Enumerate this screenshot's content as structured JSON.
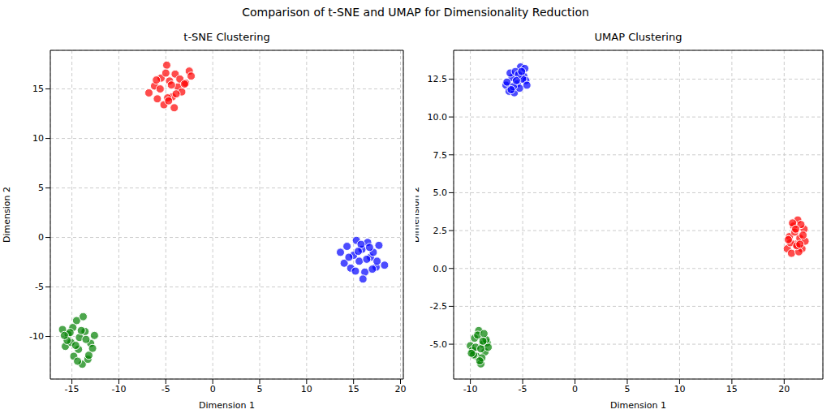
{
  "title": "Comparison of t-SNE and UMAP for Dimensionality Reduction",
  "chart_data": [
    {
      "type": "scatter",
      "title": "t-SNE Clustering",
      "x_label": "Dimension 1",
      "y_label": "Dimension 2",
      "xlim": [
        -17.3,
        20.3
      ],
      "ylim": [
        -14.3,
        18.9
      ],
      "xticks": [
        -15,
        -10,
        -5,
        0,
        5,
        10,
        15,
        20
      ],
      "yticks": [
        -10,
        -5,
        0,
        5,
        10,
        15
      ],
      "grid": true,
      "marker": "circle",
      "series": [
        {
          "color": "#ff0000",
          "x": [
            -6.8,
            -6.2,
            -5.9,
            -5.5,
            -5.2,
            -4.9,
            -4.6,
            -4.3,
            -4.0,
            -3.7,
            -3.3,
            -2.9,
            -2.5,
            -2.3,
            -5.6,
            -4.8,
            -4.1,
            -3.5,
            -6.0,
            -5.0,
            -4.4,
            -3.9,
            -3.0,
            -4.7
          ],
          "y": [
            14.6,
            15.3,
            14.0,
            16.1,
            13.4,
            17.4,
            15.8,
            14.2,
            16.5,
            15.2,
            14.7,
            15.6,
            16.8,
            16.3,
            15.0,
            14.1,
            13.1,
            16.0,
            15.9,
            16.6,
            15.4,
            14.5,
            15.5,
            13.8
          ]
        },
        {
          "color": "#0000ff",
          "x": [
            13.6,
            14.0,
            14.3,
            14.7,
            15.0,
            15.3,
            15.6,
            15.9,
            16.2,
            16.5,
            16.8,
            17.1,
            17.4,
            17.7,
            18.3,
            14.5,
            15.2,
            15.8,
            16.4,
            17.0,
            16.0,
            16.7,
            15.5,
            17.5
          ],
          "y": [
            -1.5,
            -2.6,
            -0.9,
            -3.1,
            -1.8,
            -0.3,
            -2.4,
            -1.2,
            -3.5,
            -0.5,
            -2.0,
            -1.5,
            -3.0,
            -0.8,
            -2.8,
            -2.0,
            -3.4,
            -0.7,
            -2.2,
            -3.2,
            -4.2,
            -1.0,
            -1.4,
            -2.4
          ]
        },
        {
          "color": "#008000",
          "x": [
            -16.0,
            -15.7,
            -15.4,
            -15.1,
            -14.8,
            -14.5,
            -14.2,
            -13.9,
            -13.6,
            -13.3,
            -13.0,
            -12.6,
            -15.5,
            -14.9,
            -14.3,
            -13.8,
            -13.2,
            -15.2,
            -14.6,
            -14.0,
            -13.5,
            -12.8,
            -14.4,
            -15.8
          ],
          "y": [
            -9.3,
            -11.0,
            -9.8,
            -10.6,
            -12.0,
            -8.4,
            -10.1,
            -12.8,
            -9.5,
            -12.3,
            -10.7,
            -9.9,
            -10.4,
            -9.1,
            -11.3,
            -8.0,
            -11.9,
            -9.6,
            -10.9,
            -9.4,
            -10.3,
            -11.2,
            -12.5,
            -9.9
          ]
        }
      ]
    },
    {
      "type": "scatter",
      "title": "UMAP Clustering",
      "x_label": "Dimension 1",
      "y_label": "Dimension 2",
      "xlim": [
        -11.6,
        23.7
      ],
      "ylim": [
        -7.3,
        14.4
      ],
      "xticks": [
        -10,
        -5,
        0,
        5,
        10,
        15,
        20
      ],
      "yticks": [
        {
          "value": -5,
          "label": "-5.0"
        },
        -2.5,
        {
          "value": 0,
          "label": "0.0"
        },
        2.5,
        {
          "value": 5,
          "label": "5.0"
        },
        7.5,
        {
          "value": 10,
          "label": "10.0"
        },
        12.5
      ],
      "grid": true,
      "marker": "circle",
      "series": [
        {
          "color": "#0000ff",
          "x": [
            -6.6,
            -6.3,
            -6.0,
            -5.8,
            -5.5,
            -5.2,
            -4.9,
            -4.7,
            -6.2,
            -5.7,
            -5.3,
            -5.0,
            -6.5,
            -5.9,
            -5.4,
            -4.8,
            -6.1,
            -5.6,
            -5.1,
            -4.6
          ],
          "y": [
            12.1,
            11.7,
            12.6,
            11.6,
            12.2,
            13.3,
            12.7,
            12.4,
            12.9,
            13.0,
            11.9,
            12.5,
            12.3,
            12.0,
            12.8,
            13.2,
            11.8,
            12.4,
            13.0,
            12.1
          ]
        },
        {
          "color": "#ff0000",
          "x": [
            20.3,
            20.5,
            20.7,
            20.9,
            21.1,
            21.3,
            21.5,
            21.7,
            21.9,
            22.0,
            20.6,
            21.0,
            21.4,
            21.8,
            20.8,
            21.2,
            21.6,
            20.4,
            21.1,
            21.5
          ],
          "y": [
            1.3,
            2.1,
            1.0,
            2.8,
            1.6,
            3.2,
            2.0,
            1.3,
            2.6,
            1.8,
            1.7,
            2.4,
            1.1,
            2.2,
            3.0,
            1.5,
            2.9,
            1.9,
            2.6,
            1.6
          ]
        },
        {
          "color": "#008000",
          "x": [
            -10.0,
            -9.8,
            -9.6,
            -9.4,
            -9.2,
            -9.0,
            -8.8,
            -8.6,
            -8.4,
            -8.3,
            -9.7,
            -9.3,
            -8.9,
            -8.5,
            -9.5,
            -9.1,
            -8.7,
            -9.9,
            -9.0,
            -8.8
          ],
          "y": [
            -5.1,
            -5.4,
            -4.6,
            -5.8,
            -4.1,
            -6.3,
            -5.0,
            -5.5,
            -4.9,
            -5.2,
            -5.7,
            -4.4,
            -5.9,
            -4.7,
            -5.2,
            -6.1,
            -4.3,
            -5.6,
            -5.3,
            -4.8
          ]
        }
      ]
    }
  ]
}
